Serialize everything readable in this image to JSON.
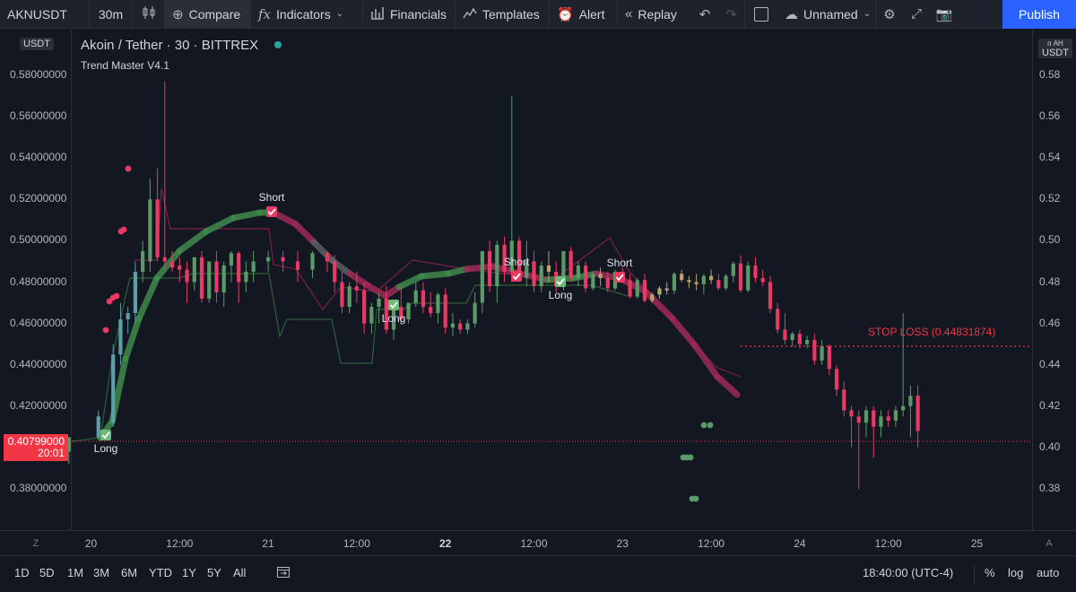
{
  "toolbar": {
    "symbol": "AKNUSDT",
    "interval": "30m",
    "compare": "Compare",
    "indicators": "Indicators",
    "financials": "Financials",
    "templates": "Templates",
    "alert": "Alert",
    "replay": "Replay",
    "layout_name": "Unnamed",
    "publish": "Publish"
  },
  "legend": {
    "title": "Akoin / Tether · 30 · BITTREX",
    "indicator": "Trend Master V4.1"
  },
  "currency_badge_left": "USDT",
  "currency_badge_right": "USDT",
  "currency_badge_right_top": "ᴨ AH",
  "current_price": {
    "price": "0.40799000",
    "countdown": "20:01"
  },
  "left_axis_labels": [
    "0.58000000",
    "0.56000000",
    "0.54000000",
    "0.52000000",
    "0.50000000",
    "0.48000000",
    "0.46000000",
    "0.44000000",
    "0.42000000",
    "0.38000000"
  ],
  "right_axis_labels": [
    "0.58",
    "0.56",
    "0.54",
    "0.52",
    "0.50",
    "0.48",
    "0.46",
    "0.44",
    "0.42",
    "0.40",
    "0.38"
  ],
  "time_labels": [
    "20",
    "12:00",
    "21",
    "12:00",
    "22",
    "12:00",
    "23",
    "12:00",
    "24",
    "12:00",
    "25"
  ],
  "stop_loss_label": "STOP LOSS (0.44831874)",
  "signals": [
    {
      "type": "Long",
      "label": "Long"
    },
    {
      "type": "Short",
      "label": "Short"
    },
    {
      "type": "Long",
      "label": "Long"
    },
    {
      "type": "Short",
      "label": "Short"
    },
    {
      "type": "Long",
      "label": "Long"
    },
    {
      "type": "Short",
      "label": "Short"
    }
  ],
  "time_axis_buttons": {
    "left": "Z",
    "right": "A"
  },
  "bottom": {
    "ranges": [
      "1D",
      "5D",
      "1M",
      "3M",
      "6M",
      "YTD",
      "1Y",
      "5Y",
      "All"
    ],
    "clock": "18:40:00 (UTC-4)",
    "percent": "%",
    "log": "log",
    "auto": "auto"
  },
  "colors": {
    "bull": "#5b9a68",
    "bear": "#e83a63",
    "neutral": "#b7a46b",
    "teal": "#5d9fa6",
    "trend_up": "#3e8a4b",
    "trend_down": "#9c2a55",
    "stop_loss": "#f23645"
  },
  "chart_data": {
    "type": "candlestick",
    "symbol": "AKNUSDT",
    "ylim": [
      0.37,
      0.585
    ],
    "x_ticks": [
      "20",
      "12:00",
      "21",
      "12:00",
      "22",
      "12:00",
      "23",
      "12:00",
      "24",
      "12:00",
      "25"
    ],
    "current_price": 0.40799,
    "stop_loss": 0.44831874,
    "candles_summary": [
      {
        "t": "20 00:00",
        "o": 0.398,
        "h": 0.405,
        "l": 0.395,
        "c": 0.405
      },
      {
        "t": "20 06:00",
        "o": 0.405,
        "h": 0.47,
        "l": 0.4,
        "c": 0.465
      },
      {
        "t": "20 10:00",
        "o": 0.47,
        "h": 0.53,
        "l": 0.465,
        "c": 0.49
      },
      {
        "t": "20 11:00",
        "o": 0.49,
        "h": 0.575,
        "l": 0.485,
        "c": 0.49
      },
      {
        "t": "20 15:00",
        "o": 0.49,
        "h": 0.495,
        "l": 0.47,
        "c": 0.475
      },
      {
        "t": "21 00:00",
        "o": 0.49,
        "h": 0.495,
        "l": 0.485,
        "c": 0.49
      },
      {
        "t": "21 06:00",
        "o": 0.475,
        "h": 0.495,
        "l": 0.455,
        "c": 0.46
      },
      {
        "t": "21 12:00",
        "o": 0.46,
        "h": 0.475,
        "l": 0.45,
        "c": 0.465
      },
      {
        "t": "21 18:00",
        "o": 0.47,
        "h": 0.5,
        "l": 0.455,
        "c": 0.49
      },
      {
        "t": "22 00:00",
        "o": 0.49,
        "h": 0.57,
        "l": 0.47,
        "c": 0.49
      },
      {
        "t": "22 12:00",
        "o": 0.48,
        "h": 0.49,
        "l": 0.465,
        "c": 0.475
      },
      {
        "t": "23 00:00",
        "o": 0.48,
        "h": 0.495,
        "l": 0.475,
        "c": 0.49
      },
      {
        "t": "23 06:00",
        "o": 0.48,
        "h": 0.485,
        "l": 0.445,
        "c": 0.45
      },
      {
        "t": "23 10:00",
        "o": 0.45,
        "h": 0.455,
        "l": 0.41,
        "c": 0.415
      },
      {
        "t": "23 13:00",
        "o": 0.415,
        "h": 0.46,
        "l": 0.4,
        "c": 0.408
      }
    ]
  }
}
